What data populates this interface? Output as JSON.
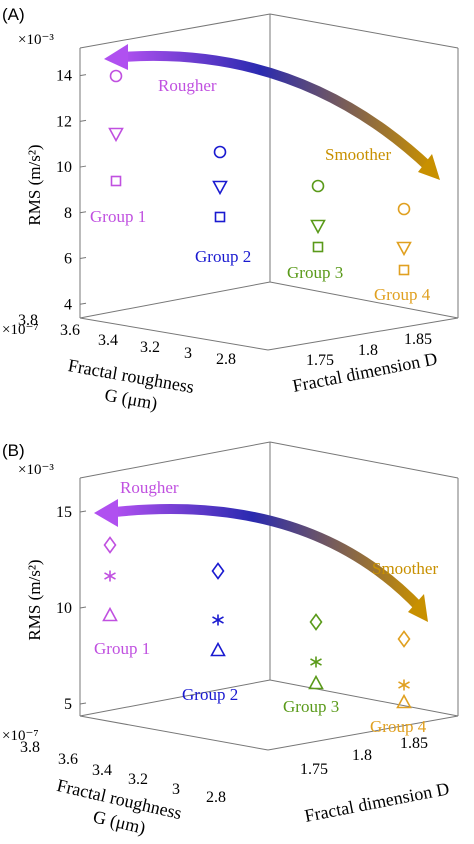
{
  "colors": {
    "axis": "#555555",
    "group1": "#c050e0",
    "group2": "#1a1ad0",
    "group3": "#5a9a1a",
    "group4": "#e0a020",
    "arrow_left": "#b050f0",
    "arrow_mid": "#2a2ab0",
    "arrow_right": "#c89000"
  },
  "chart_data": [
    {
      "type": "scatter3d",
      "panel_label": "(A)",
      "zlabel": "RMS (m/s²)",
      "z_exponent": "×10⁻³",
      "xlabel_line1": "Fractal roughness",
      "xlabel_line2": "G (μm)",
      "x_exponent": "×10⁻⁷",
      "ylabel": "Fractal dimension D",
      "z_ticks": [
        "4",
        "6",
        "8",
        "10",
        "12",
        "14"
      ],
      "x_ticks": [
        "3.8",
        "3.6",
        "3.4",
        "3.2",
        "3",
        "2.8"
      ],
      "y_ticks": [
        "1.75",
        "1.8",
        "1.85"
      ],
      "arrow_left_label": "Rougher",
      "arrow_right_label": "Smoother",
      "groups": [
        {
          "label": "Group 1",
          "color_key": "group1",
          "G": 3.7,
          "D": 1.72,
          "points": [
            {
              "marker": "circle",
              "rms": 14.7
            },
            {
              "marker": "triangle-down",
              "rms": 11.9
            },
            {
              "marker": "square",
              "rms": 9.6
            }
          ]
        },
        {
          "label": "Group 2",
          "color_key": "group2",
          "G": 3.2,
          "D": 1.74,
          "points": [
            {
              "marker": "circle",
              "rms": 11.0
            },
            {
              "marker": "triangle-down",
              "rms": 9.3
            },
            {
              "marker": "square",
              "rms": 7.8
            }
          ]
        },
        {
          "label": "Group 3",
          "color_key": "group3",
          "G": 3.3,
          "D": 1.78,
          "points": [
            {
              "marker": "circle",
              "rms": 9.3
            },
            {
              "marker": "triangle-down",
              "rms": 7.6
            },
            {
              "marker": "square",
              "rms": 6.4
            }
          ]
        },
        {
          "label": "Group 4",
          "color_key": "group4",
          "G": 2.9,
          "D": 1.82,
          "points": [
            {
              "marker": "circle",
              "rms": 8.3
            },
            {
              "marker": "triangle-down",
              "rms": 6.5
            },
            {
              "marker": "square",
              "rms": 5.3
            }
          ]
        }
      ]
    },
    {
      "type": "scatter3d",
      "panel_label": "(B)",
      "zlabel": "RMS (m/s²)",
      "z_exponent": "×10⁻³",
      "xlabel_line1": "Fractal roughness",
      "xlabel_line2": "G (μm)",
      "x_exponent": "×10⁻⁷",
      "ylabel": "Fractal dimension D",
      "z_ticks": [
        "5",
        "10",
        "15"
      ],
      "x_ticks": [
        "3.8",
        "3.6",
        "3.4",
        "3.2",
        "3",
        "2.8"
      ],
      "y_ticks": [
        "1.75",
        "1.8",
        "1.85"
      ],
      "arrow_left_label": "Rougher",
      "arrow_right_label": "Smoother",
      "groups": [
        {
          "label": "Group 1",
          "color_key": "group1",
          "G": 3.7,
          "D": 1.72,
          "points": [
            {
              "marker": "diamond",
              "rms": 13.2
            },
            {
              "marker": "asterisk",
              "rms": 11.5
            },
            {
              "marker": "triangle-up",
              "rms": 9.6
            }
          ]
        },
        {
          "label": "Group 2",
          "color_key": "group2",
          "G": 3.2,
          "D": 1.74,
          "points": [
            {
              "marker": "diamond",
              "rms": 11.8
            },
            {
              "marker": "asterisk",
              "rms": 9.3
            },
            {
              "marker": "triangle-up",
              "rms": 7.7
            }
          ]
        },
        {
          "label": "Group 3",
          "color_key": "group3",
          "G": 3.3,
          "D": 1.78,
          "points": [
            {
              "marker": "diamond",
              "rms": 9.3
            },
            {
              "marker": "asterisk",
              "rms": 7.3
            },
            {
              "marker": "triangle-up",
              "rms": 6.2
            }
          ]
        },
        {
          "label": "Group 4",
          "color_key": "group4",
          "G": 2.9,
          "D": 1.82,
          "points": [
            {
              "marker": "diamond",
              "rms": 8.4
            },
            {
              "marker": "asterisk",
              "rms": 6.0
            },
            {
              "marker": "triangle-up",
              "rms": 5.0
            }
          ]
        }
      ]
    }
  ]
}
